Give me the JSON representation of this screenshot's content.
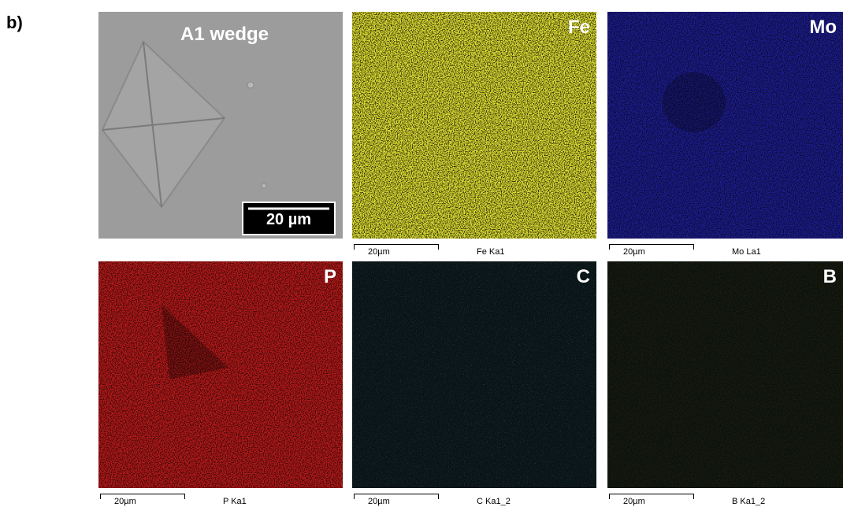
{
  "panel_label": "b)",
  "panels": [
    {
      "label": "A1 wedge",
      "scale_bar": "20 µm"
    },
    {
      "label": "Fe",
      "scale_bar": "20µm",
      "map_label": "Fe Ka1"
    },
    {
      "label": "Mo",
      "scale_bar": "20µm",
      "map_label": "Mo La1"
    },
    {
      "label": "P",
      "scale_bar": "20µm",
      "map_label": "P Ka1"
    },
    {
      "label": "C",
      "scale_bar": "20µm",
      "map_label": "C Ka1_2"
    },
    {
      "label": "B",
      "scale_bar": "20µm",
      "map_label": "B Ka1_2"
    }
  ]
}
